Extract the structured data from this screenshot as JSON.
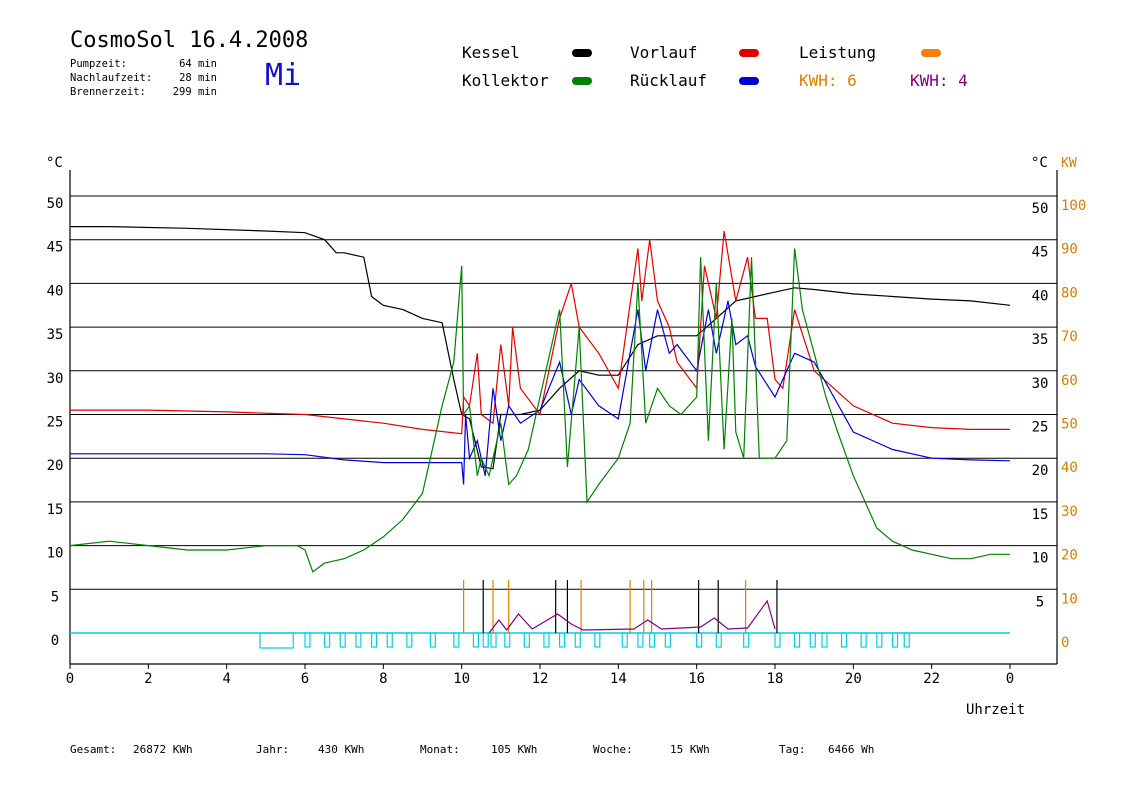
{
  "header": {
    "title": "CosmoSol 16.4.2008",
    "weekday": "Mi",
    "stats": [
      {
        "label": "Pumpzeit:",
        "value": "64 min"
      },
      {
        "label": "Nachlaufzeit:",
        "value": "28 min"
      },
      {
        "label": "Brennerzeit:",
        "value": "299 min"
      }
    ]
  },
  "legend": {
    "kessel": {
      "label": "Kessel",
      "color": "#000000"
    },
    "vorlauf": {
      "label": "Vorlauf",
      "color": "#e00000"
    },
    "leistung": {
      "label": "Leistung",
      "color": "#f08010"
    },
    "kollektor": {
      "label": "Kollektor",
      "color": "#008000"
    },
    "ruecklauf": {
      "label": "Rücklauf",
      "color": "#0000d0"
    },
    "kwh_orange": {
      "label": "KWH: 6",
      "color": "#e08000"
    },
    "kwh_purple": {
      "label": "KWH: 4",
      "color": "#800080"
    }
  },
  "footer": [
    {
      "label": "Gesamt:",
      "value": "26872 KWh"
    },
    {
      "label": "Jahr:",
      "value": "430 KWh"
    },
    {
      "label": "Monat:",
      "value": "105 KWh"
    },
    {
      "label": "Woche:",
      "value": "15 KWh"
    },
    {
      "label": "Tag:",
      "value": "6466 Wh"
    }
  ],
  "chart_data": {
    "type": "line",
    "xlabel": "Uhrzeit",
    "xlim": [
      0,
      24
    ],
    "x_ticks": [
      "0",
      "2",
      "4",
      "6",
      "8",
      "10",
      "12",
      "14",
      "16",
      "18",
      "20",
      "22",
      "0"
    ],
    "ylabel_left": "°C",
    "ylabel_right_temp": "°C",
    "ylabel_right_power": "KW",
    "ylim": [
      0,
      50
    ],
    "y_ticks_left": [
      "0",
      "5",
      "10",
      "15",
      "20",
      "25",
      "30",
      "35",
      "40",
      "45",
      "50"
    ],
    "y_ticks_right_temp": [
      "5",
      "10",
      "15",
      "20",
      "25",
      "30",
      "35",
      "40",
      "45",
      "50"
    ],
    "y_ticks_right_power": [
      "0",
      "10",
      "20",
      "30",
      "40",
      "50",
      "60",
      "70",
      "80",
      "90",
      "100"
    ],
    "grid": true,
    "series": [
      {
        "name": "Kessel",
        "color": "#000000",
        "x": [
          0,
          1,
          3,
          5,
          6,
          6.5,
          6.8,
          7,
          7.5,
          7.7,
          8,
          8.5,
          9,
          9.5,
          9.8,
          10,
          10.2,
          10.5,
          10.8,
          11,
          11.5,
          12,
          12.5,
          13,
          13.5,
          14,
          14.5,
          15,
          15.5,
          16,
          16.5,
          17,
          17.5,
          18,
          18.5,
          19,
          20,
          21,
          22,
          23,
          24
        ],
        "y": [
          46.5,
          46.5,
          46.3,
          46,
          45.8,
          45,
          43.5,
          43.5,
          43,
          38.5,
          37.5,
          37,
          36,
          35.5,
          29,
          25,
          24.5,
          19,
          18.8,
          25,
          25,
          25.5,
          28,
          30,
          29.5,
          29.5,
          33,
          34,
          34,
          34,
          36,
          38,
          38.5,
          39,
          39.5,
          39.3,
          38.8,
          38.5,
          38.2,
          38,
          37.5
        ]
      },
      {
        "name": "Vorlauf",
        "color": "#e00000",
        "x": [
          0,
          2,
          4,
          6,
          7,
          8,
          9,
          10,
          10.05,
          10.2,
          10.4,
          10.5,
          10.8,
          11,
          11.2,
          11.3,
          11.5,
          12,
          12.5,
          12.8,
          13,
          13.5,
          14,
          14.5,
          14.6,
          14.8,
          15,
          15.3,
          15.5,
          16,
          16.2,
          16.5,
          16.7,
          17,
          17.3,
          17.5,
          17.8,
          18,
          18.2,
          18.5,
          19,
          19.5,
          20,
          21,
          22,
          23,
          24
        ],
        "y": [
          25.5,
          25.5,
          25.3,
          25,
          24.5,
          24,
          23.3,
          22.8,
          27,
          26,
          32,
          25,
          24,
          33,
          26,
          35,
          28,
          25,
          36,
          40,
          35,
          32,
          28,
          44,
          38,
          45,
          38,
          35,
          31,
          28,
          42,
          36,
          46,
          38,
          43,
          36,
          36,
          29,
          28,
          37,
          30,
          28,
          26,
          24,
          23.5,
          23.3,
          23.3
        ]
      },
      {
        "name": "Rücklauf",
        "color": "#0000d0",
        "x": [
          0,
          2,
          4,
          5,
          6,
          7,
          8,
          9,
          10,
          10.05,
          10.1,
          10.2,
          10.4,
          10.6,
          10.8,
          11,
          11.2,
          11.5,
          12,
          12.5,
          12.8,
          13,
          13.5,
          14,
          14.5,
          14.7,
          15,
          15.3,
          15.5,
          16,
          16.3,
          16.5,
          16.8,
          17,
          17.3,
          17.5,
          18,
          18.5,
          19,
          19.5,
          20,
          21,
          22,
          23,
          24
        ],
        "y": [
          20.5,
          20.5,
          20.5,
          20.5,
          20.4,
          19.8,
          19.5,
          19.5,
          19.5,
          17,
          25,
          20,
          22,
          18,
          28,
          22,
          26,
          24,
          25.5,
          31,
          25,
          29,
          26,
          24.5,
          37,
          30,
          37,
          32,
          33,
          30,
          37,
          32,
          38,
          33,
          34,
          30.5,
          27,
          32,
          31,
          27,
          23,
          21,
          20,
          19.8,
          19.7
        ]
      },
      {
        "name": "Kollektor",
        "color": "#008000",
        "x": [
          0,
          1,
          2,
          3,
          4,
          5,
          5.8,
          6,
          6.2,
          6.5,
          7,
          7.5,
          8,
          8.5,
          9,
          9.5,
          9.8,
          10,
          10.05,
          10.2,
          10.4,
          10.5,
          10.7,
          11,
          11.2,
          11.4,
          11.7,
          12,
          12.3,
          12.5,
          12.7,
          13,
          13.2,
          13.5,
          14,
          14.3,
          14.5,
          14.7,
          15,
          15.3,
          15.6,
          16,
          16.1,
          16.3,
          16.5,
          16.7,
          16.9,
          17,
          17.2,
          17.4,
          17.6,
          18,
          18.3,
          18.5,
          18.7,
          19,
          19.3,
          19.6,
          20,
          20.3,
          20.6,
          21,
          21.5,
          22,
          22.5,
          23,
          23.5,
          24
        ],
        "y": [
          10,
          10.5,
          10,
          9.5,
          9.5,
          10,
          10,
          9.5,
          7,
          8,
          8.5,
          9.5,
          11,
          13,
          16,
          26,
          31,
          42,
          25,
          26,
          18,
          20,
          18,
          24,
          17,
          18,
          21,
          27,
          33,
          37,
          19,
          35,
          15,
          17,
          20,
          24,
          40,
          24,
          28,
          26,
          25,
          27,
          43,
          22,
          40,
          21,
          36,
          23,
          20,
          43,
          20,
          20,
          22,
          44,
          37,
          32,
          27,
          23,
          18,
          15,
          12,
          10.5,
          9.5,
          9,
          8.5,
          8.5,
          9,
          9
        ]
      }
    ]
  }
}
